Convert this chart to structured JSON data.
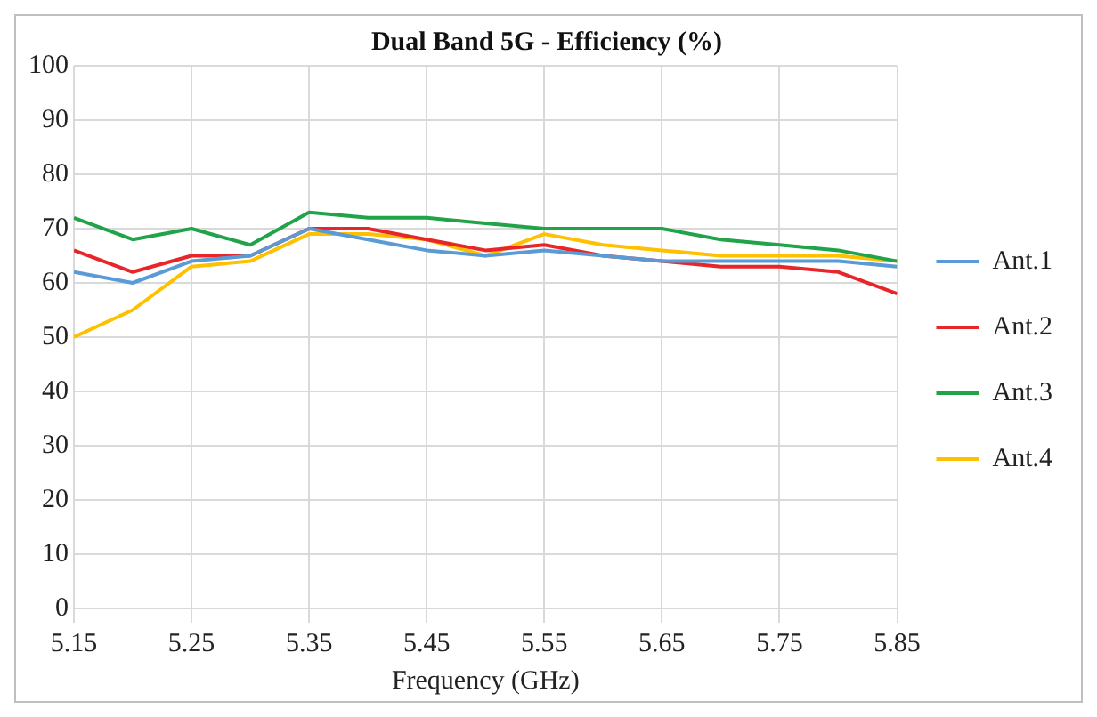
{
  "chart_data": {
    "type": "line",
    "title": "Dual Band 5G - Efficiency (%)",
    "xlabel": "Frequency (GHz)",
    "x": [
      5.15,
      5.2,
      5.25,
      5.3,
      5.35,
      5.4,
      5.45,
      5.5,
      5.55,
      5.6,
      5.65,
      5.7,
      5.75,
      5.8,
      5.85
    ],
    "series": [
      {
        "name": "Ant.1",
        "color": "#5b9bd5",
        "values": [
          62,
          60,
          64,
          65,
          70,
          68,
          66,
          65,
          66,
          65,
          64,
          64,
          64,
          64,
          63
        ]
      },
      {
        "name": "Ant.2",
        "color": "#e8262a",
        "values": [
          66,
          62,
          65,
          65,
          70,
          70,
          68,
          66,
          67,
          65,
          64,
          63,
          63,
          62,
          58
        ]
      },
      {
        "name": "Ant.3",
        "color": "#21a34a",
        "values": [
          72,
          68,
          70,
          67,
          73,
          72,
          72,
          71,
          70,
          70,
          70,
          68,
          67,
          66,
          64
        ]
      },
      {
        "name": "Ant.4",
        "color": "#ffc000",
        "values": [
          50,
          55,
          63,
          64,
          69,
          69,
          68,
          65,
          69,
          67,
          66,
          65,
          65,
          65,
          64
        ]
      }
    ],
    "xlim": [
      5.15,
      5.85
    ],
    "xticks": [
      5.15,
      5.25,
      5.35,
      5.45,
      5.55,
      5.65,
      5.75,
      5.85
    ],
    "ylim": [
      0,
      100
    ],
    "yticks": [
      0,
      10,
      20,
      30,
      40,
      50,
      60,
      70,
      80,
      90,
      100
    ],
    "grid": true,
    "legend": "right",
    "marker": "none",
    "line_style": "solid"
  }
}
